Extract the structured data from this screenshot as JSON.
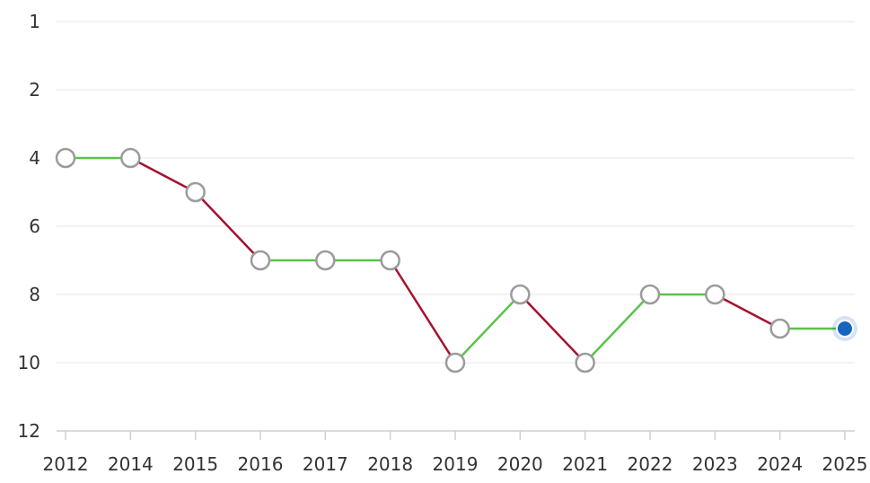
{
  "chart_data": {
    "type": "line",
    "title": "",
    "xlabel": "",
    "ylabel": "",
    "x": [
      "2012",
      "2014",
      "2015",
      "2016",
      "2017",
      "2018",
      "2019",
      "2020",
      "2021",
      "2022",
      "2023",
      "2024",
      "2025"
    ],
    "values": [
      4,
      4,
      5,
      7,
      7,
      7,
      10,
      8,
      10,
      8,
      8,
      9,
      9
    ],
    "y_ticks": [
      1,
      2,
      4,
      6,
      8,
      10,
      12
    ],
    "y_axis": "inverted",
    "grid": true,
    "legend": "none",
    "highlight_last_point": true,
    "colors": {
      "up": "#5cc24a",
      "down": "#a8112d",
      "flat": "#5cc24a",
      "marker_fill": "#ffffff",
      "marker_stroke": "#9b9b9b",
      "highlight_fill": "#1565c0",
      "grid": "#e6e6e6",
      "axis": "#cfcfcf",
      "tick_text": "#333333"
    }
  }
}
